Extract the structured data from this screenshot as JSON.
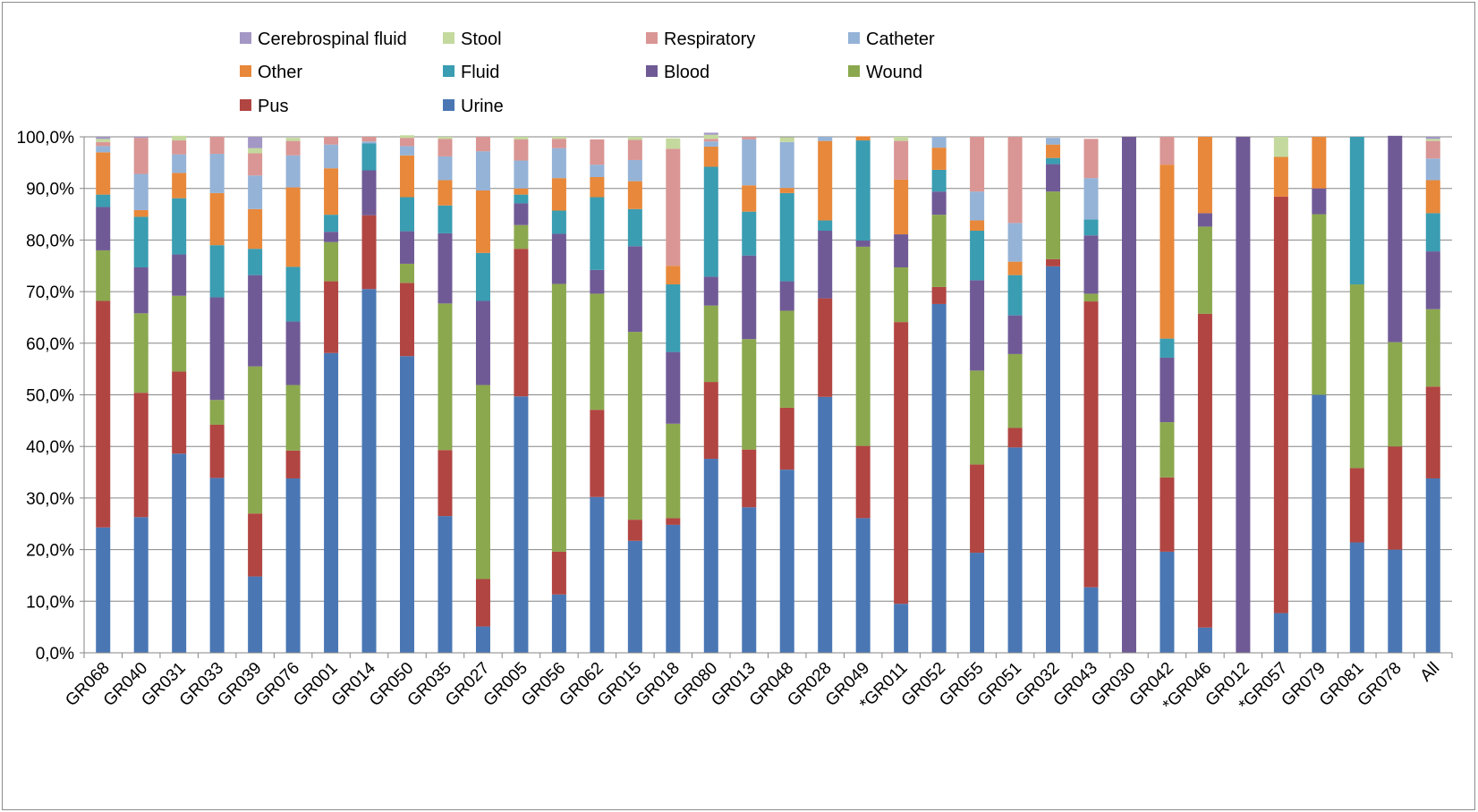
{
  "chart_data": {
    "type": "bar",
    "stacked": true,
    "percent": true,
    "title": "",
    "xlabel": "",
    "ylabel": "",
    "ylim": [
      0,
      100
    ],
    "yticks": [
      "0,0%",
      "10,0%",
      "20,0%",
      "30,0%",
      "40,0%",
      "50,0%",
      "60,0%",
      "70,0%",
      "80,0%",
      "90,0%",
      "100,0%"
    ],
    "grid": true,
    "legend_position": "top",
    "categories": [
      "GR068",
      "GR040",
      "GR031",
      "GR033",
      "GR039",
      "GR076",
      "GR001",
      "GR014",
      "GR050",
      "GR035",
      "GR027",
      "GR005",
      "GR056",
      "GR062",
      "GR015",
      "GR018",
      "GR080",
      "GR013",
      "GR048",
      "GR028",
      "GR049",
      "*GR011",
      "GR052",
      "GR055",
      "GR051",
      "GR032",
      "GR043",
      "GR030",
      "GR042",
      "*GR046",
      "GR012",
      "*GR057",
      "GR079",
      "GR081",
      "GR078",
      "All"
    ],
    "legend": [
      {
        "name": "Cerebrospinal fluid",
        "color": "#a397c5"
      },
      {
        "name": "Stool",
        "color": "#c4d99e"
      },
      {
        "name": "Respiratory",
        "color": "#d99694"
      },
      {
        "name": "Catheter",
        "color": "#95b3d7"
      },
      {
        "name": "Other",
        "color": "#e8883a"
      },
      {
        "name": "Fluid",
        "color": "#3a9db2"
      },
      {
        "name": "Blood",
        "color": "#705a96"
      },
      {
        "name": "Wound",
        "color": "#8ba84e"
      },
      {
        "name": "Pus",
        "color": "#b14542"
      },
      {
        "name": "Urine",
        "color": "#4a77b4"
      }
    ],
    "series": [
      {
        "name": "Urine",
        "color": "#4a77b4",
        "values": [
          24.3,
          26.3,
          38.6,
          33.9,
          14.8,
          33.8,
          58.1,
          70.5,
          57.5,
          26.5,
          5.1,
          49.7,
          11.3,
          30.2,
          21.7,
          24.8,
          37.6,
          28.2,
          35.5,
          49.6,
          26.1,
          9.5,
          67.6,
          19.4,
          39.8,
          74.9,
          12.7,
          0,
          19.6,
          4.9,
          0,
          7.7,
          50.0,
          21.4,
          20.0,
          33.8
        ]
      },
      {
        "name": "Pus",
        "color": "#b14542",
        "values": [
          43.9,
          24.1,
          15.9,
          10.3,
          12.2,
          5.4,
          13.9,
          14.3,
          14.2,
          12.8,
          9.2,
          28.6,
          8.3,
          16.9,
          4.1,
          1.3,
          14.9,
          11.2,
          12.0,
          19.1,
          14.0,
          54.6,
          3.3,
          17.1,
          3.8,
          1.4,
          55.4,
          0,
          14.4,
          60.8,
          0,
          80.7,
          0,
          14.4,
          20.0,
          17.8
        ]
      },
      {
        "name": "Wound",
        "color": "#8ba84e",
        "values": [
          9.8,
          15.4,
          14.7,
          4.8,
          28.5,
          12.7,
          7.6,
          0,
          3.7,
          28.4,
          37.6,
          4.6,
          51.9,
          22.5,
          36.4,
          18.3,
          14.8,
          21.4,
          18.8,
          0,
          38.6,
          10.6,
          14.0,
          18.2,
          14.3,
          13.1,
          1.5,
          0,
          10.7,
          16.9,
          0,
          0,
          35.0,
          35.6,
          20.2,
          15.0
        ]
      },
      {
        "name": "Blood",
        "color": "#705a96",
        "values": [
          8.4,
          8.9,
          8.0,
          19.9,
          17.7,
          12.3,
          2.0,
          8.7,
          6.3,
          13.6,
          16.3,
          4.2,
          9.7,
          4.6,
          16.6,
          13.9,
          5.6,
          16.2,
          5.7,
          13.1,
          1.2,
          6.4,
          4.5,
          17.5,
          7.5,
          5.3,
          11.3,
          100,
          12.5,
          2.6,
          100,
          0,
          5.0,
          0,
          40.0,
          11.2
        ]
      },
      {
        "name": "Fluid",
        "color": "#3a9db2",
        "values": [
          2.4,
          9.8,
          10.9,
          10.1,
          5.1,
          10.6,
          3.3,
          5.2,
          6.6,
          5.4,
          9.3,
          1.7,
          4.5,
          14.1,
          7.2,
          13.1,
          21.3,
          8.5,
          17.1,
          2.0,
          19.4,
          0,
          4.2,
          9.6,
          7.8,
          1.2,
          3.1,
          0,
          3.7,
          0,
          0,
          0,
          0,
          28.6,
          0,
          7.4
        ]
      },
      {
        "name": "Other",
        "color": "#e8883a",
        "values": [
          8.2,
          1.3,
          4.9,
          10.1,
          7.7,
          15.4,
          9.0,
          0,
          8.1,
          4.9,
          12.1,
          1.2,
          6.3,
          3.9,
          5.4,
          3.6,
          3.9,
          5.1,
          1.0,
          15.4,
          0.8,
          10.6,
          4.3,
          2.0,
          2.6,
          2.6,
          0,
          0,
          33.7,
          14.8,
          0,
          7.7,
          10.0,
          0,
          0,
          6.4
        ]
      },
      {
        "name": "Catheter",
        "color": "#95b3d7",
        "values": [
          1.2,
          7.0,
          3.6,
          7.6,
          6.5,
          6.2,
          4.6,
          0.4,
          1.8,
          4.6,
          7.6,
          5.4,
          5.8,
          2.4,
          4.1,
          0,
          1.0,
          8.9,
          8.9,
          0.8,
          0,
          0,
          2.1,
          5.6,
          7.5,
          1.3,
          8.0,
          0,
          0,
          0,
          0,
          0,
          0,
          0,
          0,
          4.2
        ]
      },
      {
        "name": "Respiratory",
        "color": "#d99694",
        "values": [
          0.8,
          7.0,
          2.7,
          3.3,
          4.3,
          2.8,
          1.5,
          0.9,
          1.6,
          3.4,
          2.8,
          4.1,
          1.8,
          4.9,
          3.9,
          22.7,
          0.5,
          0.5,
          0,
          0,
          0,
          7.5,
          0,
          10.6,
          16.7,
          0,
          7.6,
          0,
          5.4,
          0,
          0,
          0,
          0,
          0,
          0,
          3.4
        ]
      },
      {
        "name": "Stool",
        "color": "#c4d99e",
        "values": [
          0.6,
          0,
          0.9,
          0,
          1.0,
          0.6,
          0,
          0,
          0.5,
          0.4,
          0,
          0.5,
          0.4,
          0,
          0.6,
          2.0,
          0.8,
          0,
          0.9,
          0,
          0,
          0.8,
          0,
          0,
          0,
          0,
          0,
          0,
          0,
          0,
          0,
          3.9,
          0,
          0,
          0,
          0.4
        ]
      },
      {
        "name": "Cerebrospinal fluid",
        "color": "#a397c5",
        "values": [
          0.4,
          0.2,
          0,
          0,
          2.2,
          0,
          0,
          0,
          0,
          0,
          0,
          0,
          0,
          0,
          0,
          0,
          0.4,
          0,
          0,
          0,
          0,
          0,
          0,
          0,
          0,
          0,
          0,
          0,
          0,
          0,
          0,
          0,
          0,
          0,
          0,
          0.4
        ]
      }
    ]
  }
}
